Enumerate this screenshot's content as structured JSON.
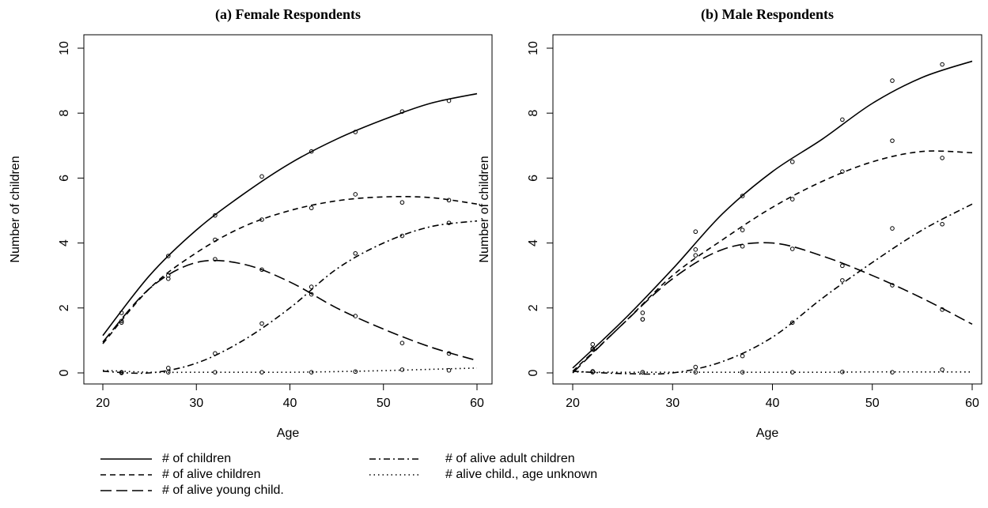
{
  "chart_data": [
    {
      "type": "line",
      "title": "(a) Female Respondents",
      "xlabel": "Age",
      "ylabel": "Number of children",
      "xlim": [
        20,
        60
      ],
      "ylim": [
        0,
        10
      ],
      "xticks": [
        20,
        30,
        40,
        50,
        60
      ],
      "yticks": [
        0,
        2,
        4,
        6,
        8,
        10
      ],
      "x": [
        20,
        25,
        30,
        35,
        40,
        45,
        50,
        55,
        60
      ],
      "point_x": [
        22,
        27,
        32,
        37,
        42.3,
        47,
        52,
        57
      ],
      "series": [
        {
          "values": [
            1.15,
            3.0,
            4.4,
            5.5,
            6.45,
            7.2,
            7.8,
            8.3,
            8.6
          ],
          "points": [
            1.85,
            3.6,
            4.85,
            6.05,
            6.82,
            7.42,
            8.05,
            8.38
          ]
        },
        {
          "values": [
            0.9,
            2.6,
            3.7,
            4.5,
            5.0,
            5.3,
            5.42,
            5.4,
            5.2
          ],
          "points": [
            1.6,
            3.0,
            4.1,
            4.72,
            5.08,
            5.5,
            5.25,
            5.32
          ]
        },
        {
          "values": [
            0.95,
            2.6,
            3.4,
            3.35,
            2.8,
            2.0,
            1.35,
            0.8,
            0.38
          ],
          "points": [
            1.55,
            2.9,
            3.5,
            3.18,
            2.42,
            1.75,
            0.92,
            0.6
          ]
        },
        {
          "values": [
            0.05,
            0.0,
            0.3,
            1.0,
            2.0,
            3.2,
            4.0,
            4.5,
            4.68
          ],
          "points": [
            0.02,
            0.15,
            0.6,
            1.52,
            2.65,
            3.68,
            4.22,
            4.62
          ]
        },
        {
          "values": [
            0.08,
            0.02,
            0.02,
            0.02,
            0.02,
            0.04,
            0.07,
            0.11,
            0.15
          ],
          "points": [
            0.0,
            0.02,
            0.02,
            0.02,
            0.02,
            0.04,
            0.1,
            0.08
          ]
        }
      ]
    },
    {
      "type": "line",
      "title": "(b) Male Respondents",
      "xlabel": "Age",
      "ylabel": "Number of children",
      "xlim": [
        20,
        60
      ],
      "ylim": [
        0,
        10
      ],
      "xticks": [
        20,
        30,
        40,
        50,
        60
      ],
      "yticks": [
        0,
        2,
        4,
        6,
        8,
        10
      ],
      "x": [
        20,
        25,
        30,
        35,
        40,
        45,
        50,
        55,
        60
      ],
      "point_x": [
        22,
        27,
        32.3,
        37,
        42,
        47,
        52,
        57
      ],
      "series": [
        {
          "values": [
            0.15,
            1.6,
            3.2,
            4.9,
            6.2,
            7.2,
            8.3,
            9.1,
            9.6
          ],
          "points": [
            0.88,
            1.85,
            4.35,
            5.45,
            6.5,
            7.8,
            9.0,
            9.5
          ]
        },
        {
          "values": [
            0.05,
            1.5,
            3.0,
            4.1,
            5.1,
            5.9,
            6.5,
            6.82,
            6.78
          ],
          "points": [
            0.75,
            1.65,
            3.8,
            4.4,
            5.35,
            6.2,
            7.15,
            6.62
          ]
        },
        {
          "values": [
            0.0,
            1.5,
            2.9,
            3.8,
            4.0,
            3.6,
            3.0,
            2.3,
            1.5
          ],
          "points": [
            0.72,
            1.65,
            3.62,
            3.9,
            3.82,
            3.3,
            2.7,
            1.95
          ]
        },
        {
          "values": [
            0.05,
            -0.02,
            0.0,
            0.35,
            1.1,
            2.3,
            3.4,
            4.4,
            5.2
          ],
          "points": [
            0.05,
            0.02,
            0.18,
            0.52,
            1.55,
            2.85,
            4.45,
            4.58
          ]
        },
        {
          "values": [
            0.03,
            0.02,
            0.02,
            0.02,
            0.02,
            0.02,
            0.03,
            0.03,
            0.03
          ],
          "points": [
            0.02,
            0.02,
            0.02,
            0.02,
            0.02,
            0.03,
            0.02,
            0.1
          ]
        }
      ]
    }
  ],
  "legend": [
    {
      "name": "# of children",
      "dash": "none"
    },
    {
      "name": "# of alive children",
      "dash": "7 5"
    },
    {
      "name": "# of alive young child.",
      "dash": "14 6"
    },
    {
      "name": "# of alive adult children",
      "dash": "8 4 2 4"
    },
    {
      "name": "# alive child., age unknown",
      "dash": "1.5 4"
    }
  ]
}
